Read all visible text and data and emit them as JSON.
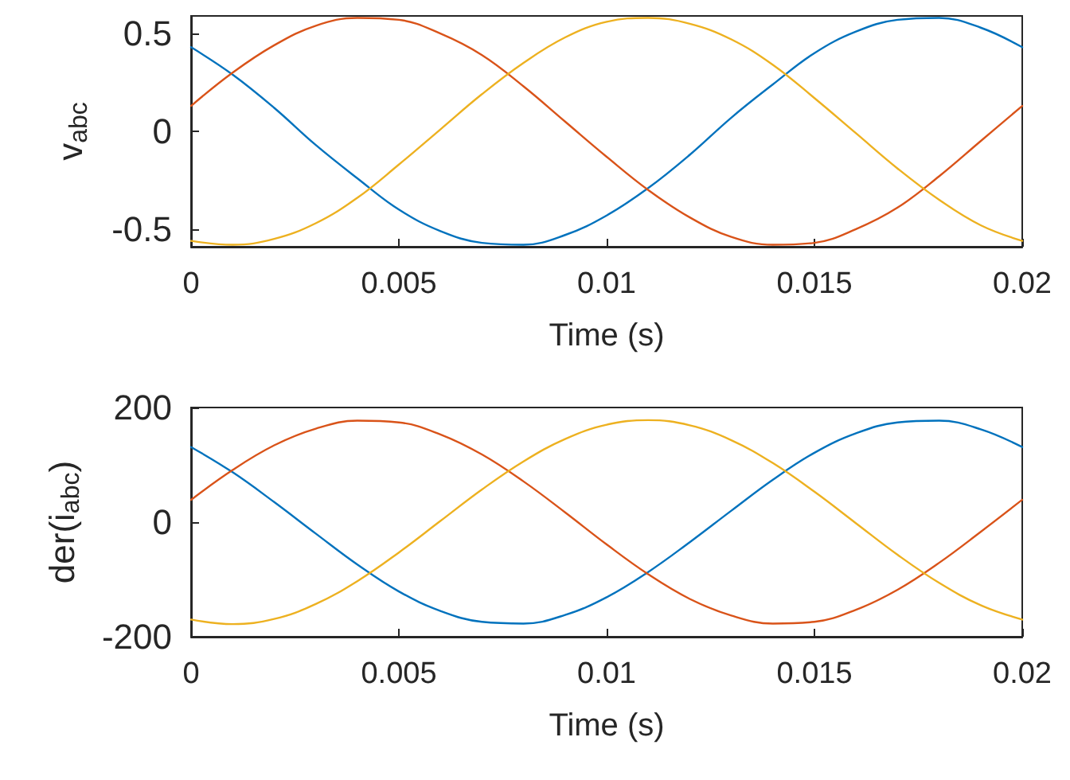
{
  "chart_data": [
    {
      "type": "line",
      "xlabel": "Time (s)",
      "ylabel": "v$_{abc}$",
      "x": [
        0,
        0.001,
        0.002,
        0.003,
        0.004,
        0.005,
        0.006,
        0.007,
        0.008,
        0.009,
        0.01,
        0.011,
        0.012,
        0.013,
        0.014,
        0.015,
        0.016,
        0.017,
        0.018,
        0.019,
        0.02
      ],
      "xlim": [
        0,
        0.02
      ],
      "xticks": [
        0,
        0.005,
        0.01,
        0.015,
        0.02
      ],
      "ylim": [
        -0.59,
        0.59
      ],
      "yticks": [
        -0.5,
        0,
        0.5
      ],
      "grid": false,
      "series": [
        {
          "color": "#0072bd",
          "values": [
            0.43,
            0.29,
            0.12,
            -0.07,
            -0.24,
            -0.4,
            -0.51,
            -0.57,
            -0.58,
            -0.53,
            -0.43,
            -0.29,
            -0.12,
            0.07,
            0.24,
            0.4,
            0.51,
            0.57,
            0.58,
            0.53,
            0.43
          ]
        },
        {
          "color": "#d95319",
          "values": [
            0.13,
            0.3,
            0.44,
            0.54,
            0.58,
            0.57,
            0.5,
            0.39,
            0.23,
            0.05,
            -0.13,
            -0.3,
            -0.44,
            -0.54,
            -0.58,
            -0.57,
            -0.5,
            -0.39,
            -0.23,
            -0.05,
            0.13
          ]
        },
        {
          "color": "#edb120",
          "values": [
            -0.56,
            -0.58,
            -0.55,
            -0.47,
            -0.34,
            -0.17,
            0.01,
            0.19,
            0.35,
            0.48,
            0.56,
            0.58,
            0.55,
            0.47,
            0.34,
            0.17,
            -0.01,
            -0.19,
            -0.35,
            -0.48,
            -0.56
          ]
        }
      ]
    },
    {
      "type": "line",
      "xlabel": "Time (s)",
      "ylabel": "der(i$_{abc}$)",
      "x": [
        0,
        0.001,
        0.002,
        0.003,
        0.004,
        0.005,
        0.006,
        0.007,
        0.008,
        0.009,
        0.01,
        0.011,
        0.012,
        0.013,
        0.014,
        0.015,
        0.016,
        0.017,
        0.018,
        0.019,
        0.02
      ],
      "xlim": [
        0,
        0.02
      ],
      "xticks": [
        0,
        0.005,
        0.01,
        0.015,
        0.02
      ],
      "ylim": [
        -200,
        200
      ],
      "yticks": [
        -200,
        0,
        200
      ],
      "grid": false,
      "series": [
        {
          "color": "#0072bd",
          "values": [
            131,
            87,
            35,
            -20,
            -74,
            -121,
            -155,
            -174,
            -177,
            -162,
            -131,
            -87,
            -35,
            20,
            74,
            121,
            155,
            174,
            177,
            162,
            131
          ]
        },
        {
          "color": "#d95319",
          "values": [
            39,
            91,
            134,
            163,
            177,
            174,
            153,
            118,
            71,
            17,
            -39,
            -91,
            -134,
            -163,
            -177,
            -174,
            -153,
            -118,
            -71,
            -17,
            39
          ]
        },
        {
          "color": "#edb120",
          "values": [
            -170,
            -178,
            -169,
            -143,
            -103,
            -53,
            2,
            57,
            106,
            145,
            170,
            178,
            169,
            143,
            103,
            53,
            -2,
            -57,
            -106,
            -145,
            -170
          ]
        }
      ]
    }
  ]
}
